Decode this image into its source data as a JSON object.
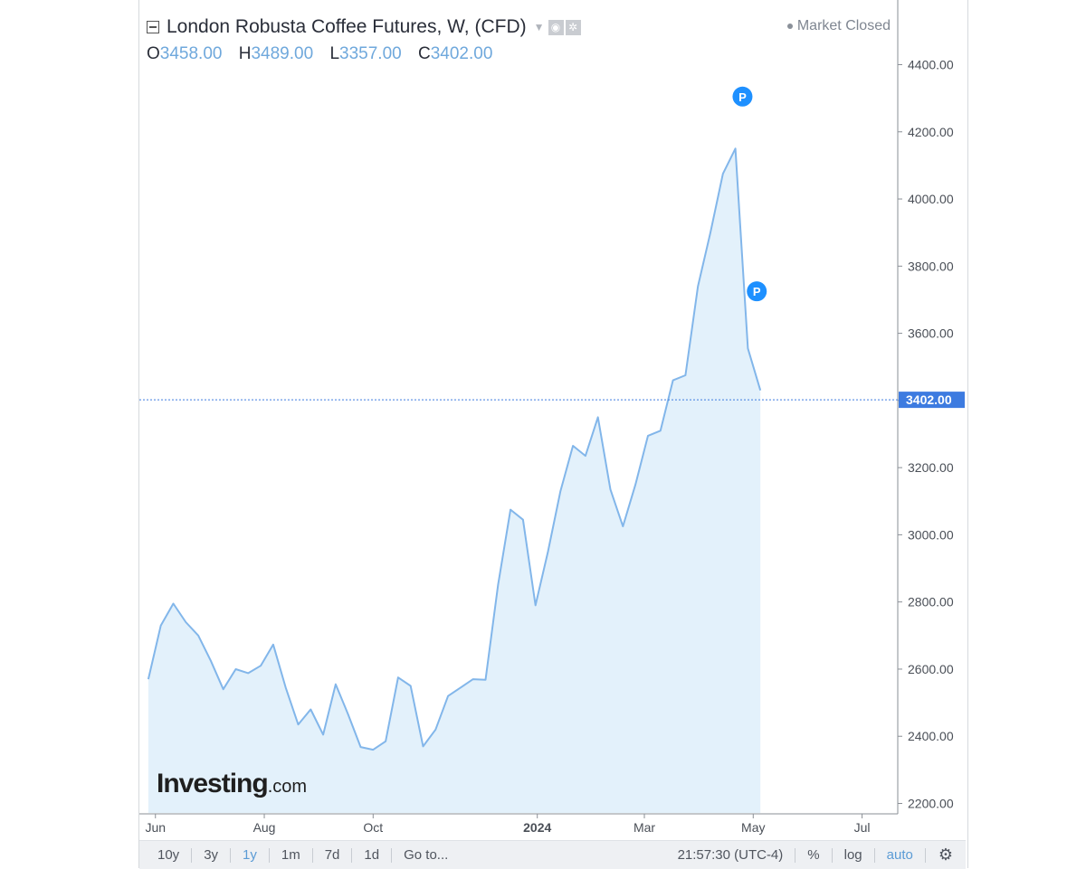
{
  "header": {
    "title": "London Robusta Coffee Futures, W, (CFD)",
    "ohlc": [
      {
        "label": "O",
        "value": "3458.00"
      },
      {
        "label": "H",
        "value": "3489.00"
      },
      {
        "label": "L",
        "value": "3357.00"
      },
      {
        "label": "C",
        "value": "3402.00"
      }
    ],
    "market_status": "Market Closed"
  },
  "chart_data": {
    "type": "area",
    "ylim": [
      2170,
      4520
    ],
    "yticks": [
      2200,
      2400,
      2600,
      2800,
      3000,
      3200,
      3400,
      3600,
      3800,
      4000,
      4200,
      4400
    ],
    "ytick_labels": [
      "2200.00",
      "2400.00",
      "2600.00",
      "2800.00",
      "3000.00",
      "3200.00",
      "3400.00",
      "3600.00",
      "3800.00",
      "4000.00",
      "4200.00",
      "4400.00"
    ],
    "xlim": [
      "2023-05-23",
      "2024-07-21"
    ],
    "x_ticks": [
      {
        "date": "2023-06-01",
        "label": "Jun",
        "bold": false
      },
      {
        "date": "2023-08-01",
        "label": "Aug",
        "bold": false
      },
      {
        "date": "2023-10-01",
        "label": "Oct",
        "bold": false
      },
      {
        "date": "2024-01-01",
        "label": "2024",
        "bold": true
      },
      {
        "date": "2024-03-01",
        "label": "Mar",
        "bold": false
      },
      {
        "date": "2024-05-01",
        "label": "May",
        "bold": false
      },
      {
        "date": "2024-07-01",
        "label": "Jul",
        "bold": false
      }
    ],
    "last_price": 3402,
    "last_price_label": "3402.00",
    "series": [
      {
        "x": [
          "2023-05-28",
          "2023-06-04",
          "2023-06-11",
          "2023-06-18",
          "2023-06-25",
          "2023-07-02",
          "2023-07-09",
          "2023-07-16",
          "2023-07-23",
          "2023-07-30",
          "2023-08-06",
          "2023-08-13",
          "2023-08-20",
          "2023-08-27",
          "2023-09-03",
          "2023-09-10",
          "2023-09-17",
          "2023-09-24",
          "2023-10-01",
          "2023-10-08",
          "2023-10-15",
          "2023-10-22",
          "2023-10-29",
          "2023-11-05",
          "2023-11-12",
          "2023-11-19",
          "2023-11-26",
          "2023-12-03",
          "2023-12-10",
          "2023-12-17",
          "2023-12-24",
          "2023-12-31",
          "2024-01-07",
          "2024-01-14",
          "2024-01-21",
          "2024-01-28",
          "2024-02-04",
          "2024-02-11",
          "2024-02-18",
          "2024-02-25",
          "2024-03-03",
          "2024-03-10",
          "2024-03-17",
          "2024-03-24",
          "2024-03-31",
          "2024-04-07",
          "2024-04-14",
          "2024-04-21",
          "2024-04-28",
          "2024-05-05"
        ],
        "values": [
          2570,
          2730,
          2795,
          2740,
          2700,
          2625,
          2540,
          2600,
          2588,
          2610,
          2673,
          2545,
          2435,
          2480,
          2405,
          2555,
          2465,
          2368,
          2360,
          2385,
          2575,
          2550,
          2370,
          2420,
          2520,
          2545,
          2570,
          2568,
          2850,
          3075,
          3045,
          2790,
          2950,
          3130,
          3265,
          3235,
          3350,
          3135,
          3025,
          3150,
          3295,
          3310,
          3460,
          3475,
          3740,
          3900,
          4075,
          4150,
          3555,
          3430
        ]
      }
    ],
    "markers": [
      {
        "date": "2024-04-25",
        "value": 4305,
        "label": "P"
      },
      {
        "date": "2024-05-03",
        "value": 3725,
        "label": "P"
      }
    ],
    "line_color": "#82b6ea",
    "fill_color": "#e3f1fb",
    "marker_color": "#1e90ff",
    "price_tag_color": "#3d7be0"
  },
  "watermark": {
    "brand": "Investing",
    "suffix": ".com"
  },
  "toolbar": {
    "ranges": [
      "10y",
      "3y",
      "1y",
      "1m",
      "7d",
      "1d"
    ],
    "active_range": "1y",
    "goto_label": "Go to...",
    "time": "21:57:30 (UTC-4)",
    "percent_label": "%",
    "log_label": "log",
    "auto_label": "auto",
    "settings_icon": "gear-icon"
  }
}
